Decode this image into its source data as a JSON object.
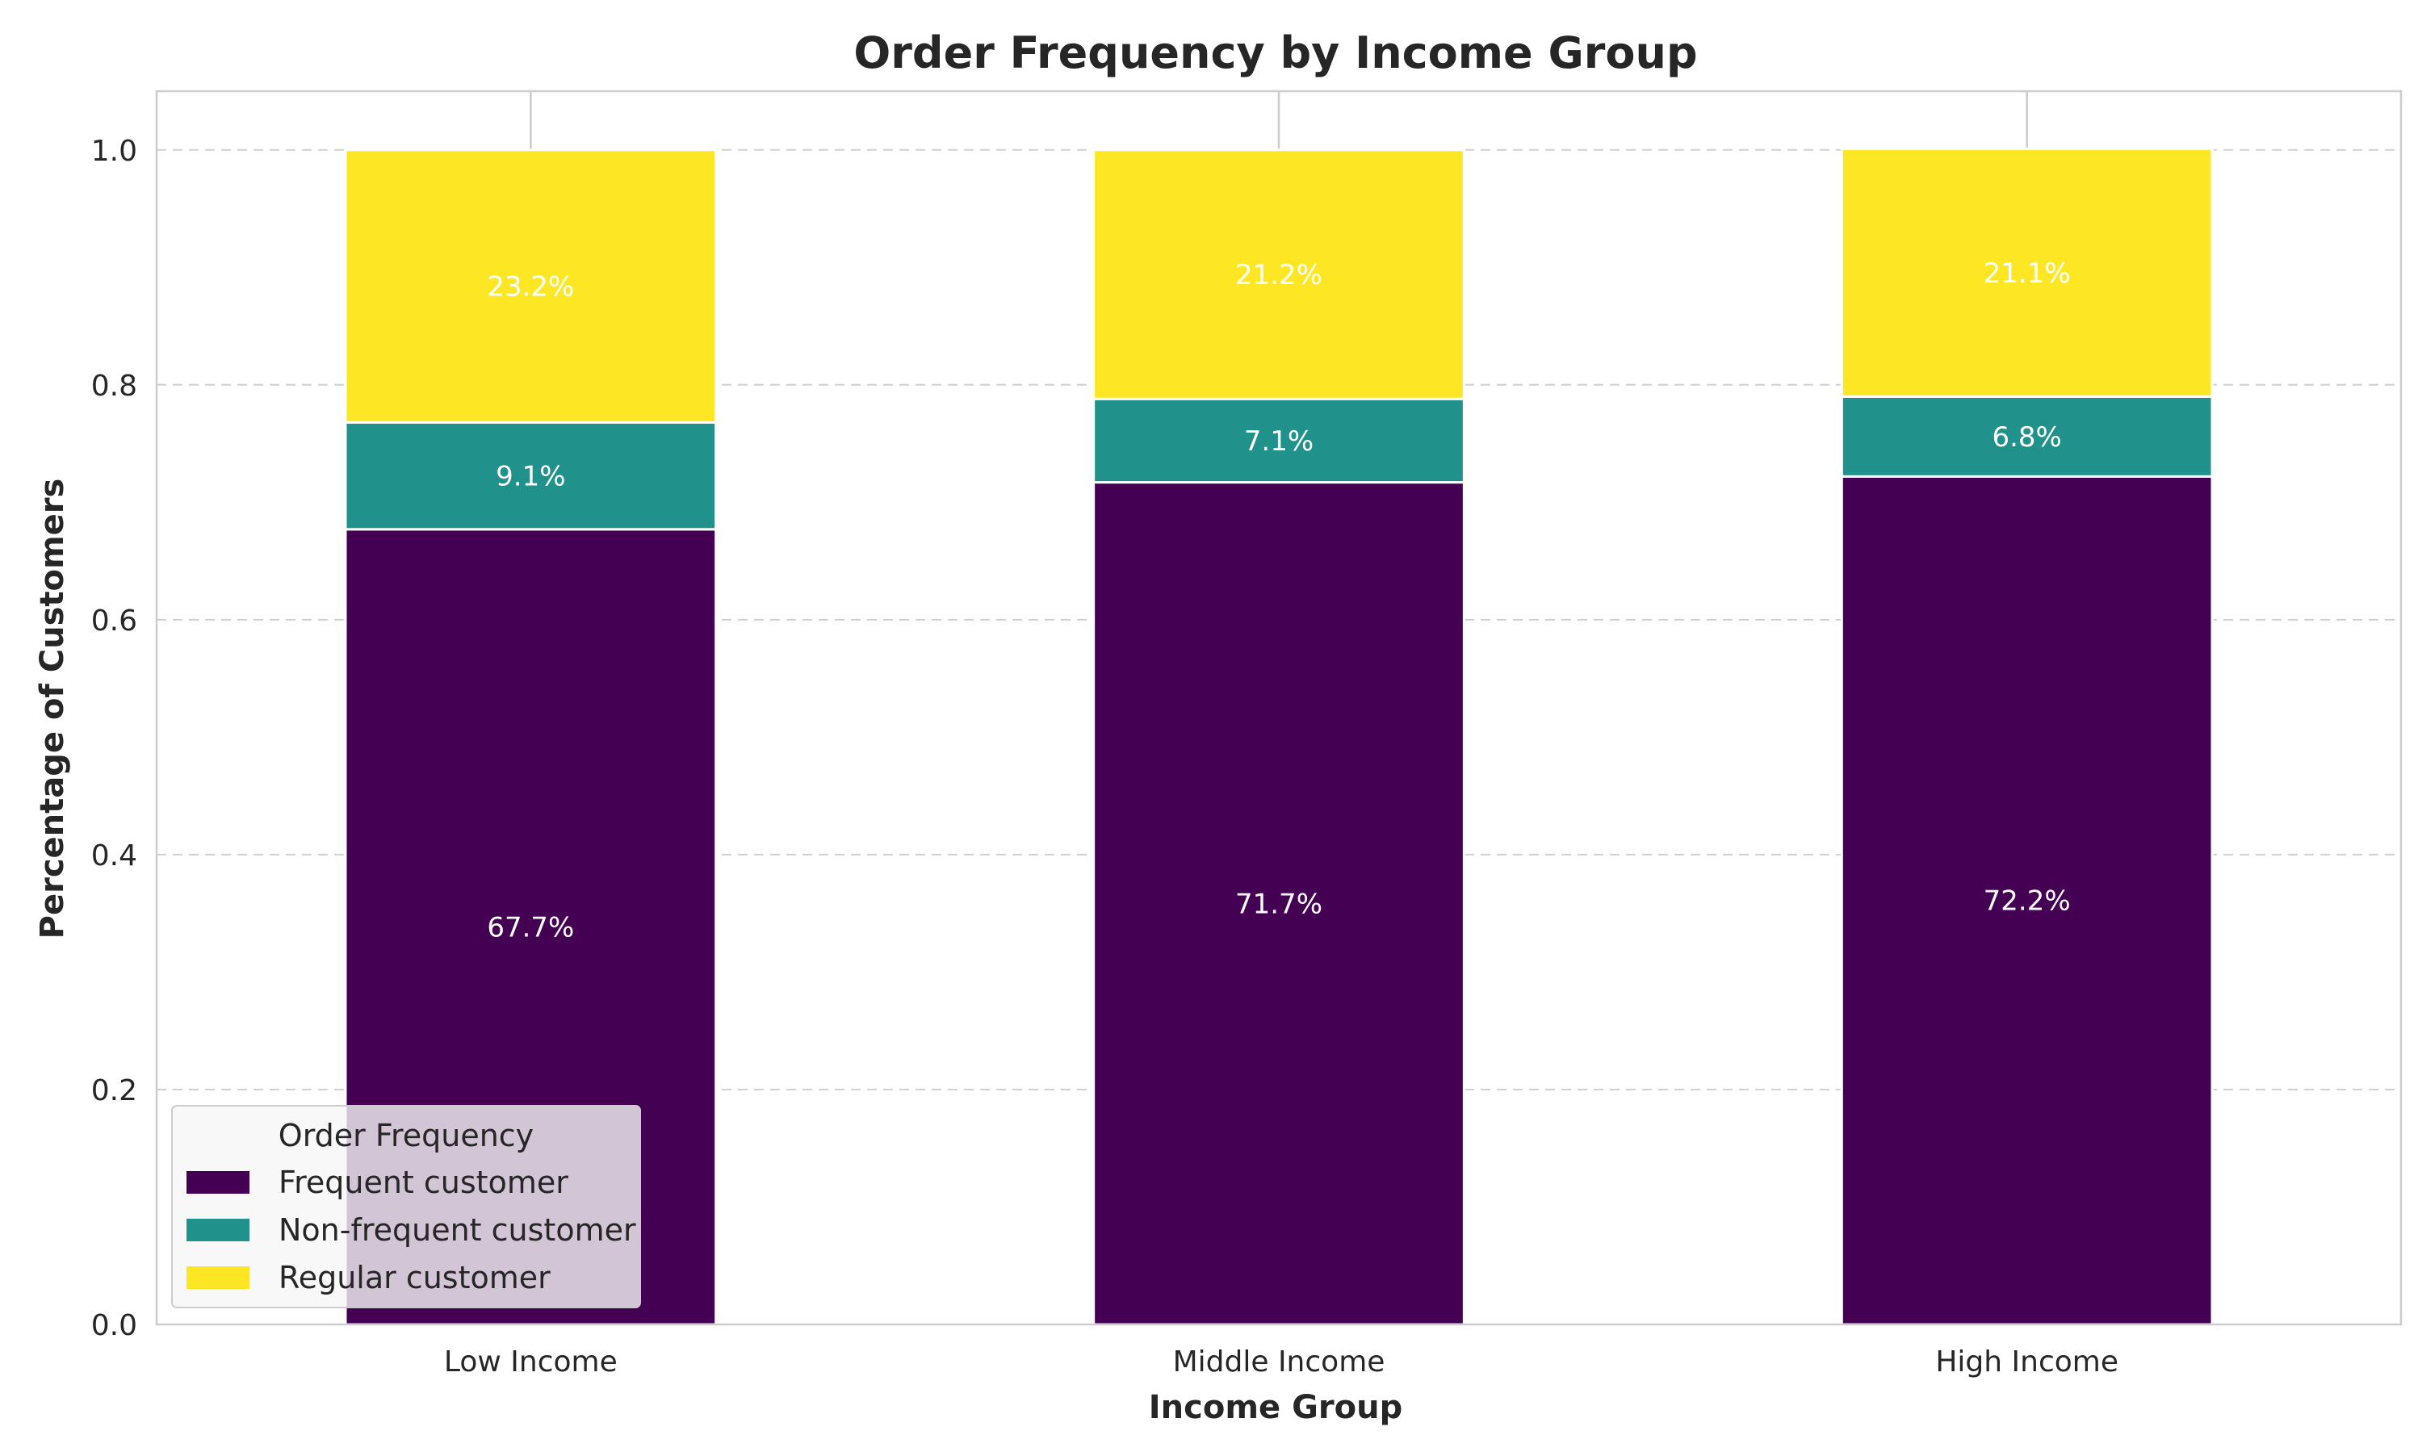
{
  "chart_data": {
    "type": "bar",
    "stacked": true,
    "title": "Order Frequency by Income Group",
    "xlabel": "Income Group",
    "ylabel": "Percentage of Customers",
    "categories": [
      "Low Income",
      "Middle Income",
      "High Income"
    ],
    "series": [
      {
        "name": "Frequent customer",
        "values": [
          0.677,
          0.717,
          0.722
        ],
        "labels": [
          "67.7%",
          "71.7%",
          "72.2%"
        ],
        "color": "#440154"
      },
      {
        "name": "Non-frequent customer",
        "values": [
          0.091,
          0.071,
          0.068
        ],
        "labels": [
          "9.1%",
          "7.1%",
          "6.8%"
        ],
        "color": "#21918c"
      },
      {
        "name": "Regular customer",
        "values": [
          0.232,
          0.212,
          0.211
        ],
        "labels": [
          "23.2%",
          "21.2%",
          "21.1%"
        ],
        "color": "#fde725"
      }
    ],
    "ylim": [
      0,
      1.05
    ],
    "yticks": [
      "0.0",
      "0.2",
      "0.4",
      "0.6",
      "0.8",
      "1.0"
    ],
    "grid": true,
    "legend": {
      "title": "Order Frequency",
      "placement": "lower-left"
    }
  }
}
